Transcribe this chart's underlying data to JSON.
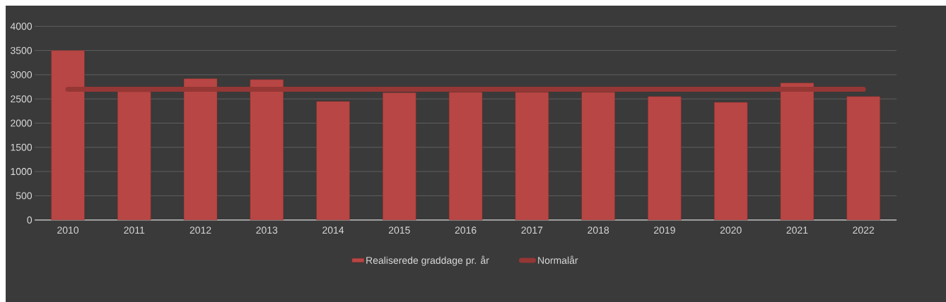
{
  "chart_data": {
    "type": "bar",
    "categories": [
      "2010",
      "2011",
      "2012",
      "2013",
      "2014",
      "2015",
      "2016",
      "2017",
      "2018",
      "2019",
      "2020",
      "2021",
      "2022"
    ],
    "series": [
      {
        "name": "Realiserede graddage pr. år",
        "color": "#b84644",
        "values": [
          3500,
          2650,
          2920,
          2900,
          2450,
          2630,
          2640,
          2640,
          2640,
          2550,
          2430,
          2830,
          2550
        ]
      },
      {
        "name": "Normalår",
        "type": "line",
        "color": "#953735",
        "values": [
          2700,
          2700,
          2700,
          2700,
          2700,
          2700,
          2700,
          2700,
          2700,
          2700,
          2700,
          2700,
          2700
        ]
      }
    ],
    "ylim": [
      0,
      4000
    ],
    "yticks": [
      0,
      500,
      1000,
      1500,
      2000,
      2500,
      3000,
      3500,
      4000
    ],
    "grid": "y",
    "legend": "bottom"
  }
}
